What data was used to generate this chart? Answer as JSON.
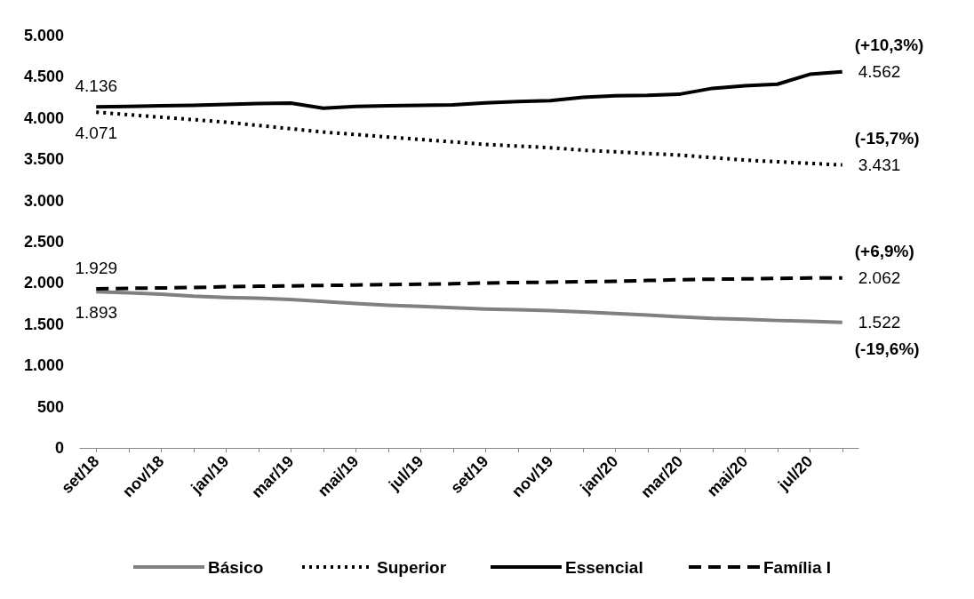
{
  "chart_data": {
    "type": "line",
    "categories": [
      "set/18",
      null,
      "nov/18",
      null,
      "jan/19",
      null,
      "mar/19",
      null,
      "mai/19",
      null,
      "jul/19",
      null,
      "set/19",
      null,
      "nov/19",
      null,
      "jan/20",
      null,
      "mar/20",
      null,
      "mai/20",
      null,
      "jul/20",
      null
    ],
    "series": [
      {
        "name": "Básico",
        "color": "#808080",
        "line_style": "solid",
        "values": [
          1893,
          1880,
          1865,
          1840,
          1825,
          1815,
          1800,
          1775,
          1750,
          1730,
          1715,
          1700,
          1685,
          1675,
          1665,
          1650,
          1630,
          1610,
          1590,
          1570,
          1560,
          1545,
          1535,
          1522
        ],
        "value_labels": [
          "1.893",
          null,
          null,
          null,
          null,
          null,
          null,
          null,
          null,
          null,
          null,
          null,
          null,
          null,
          null,
          null,
          null,
          null,
          null,
          null,
          null,
          null,
          null,
          "1.522"
        ]
      },
      {
        "name": "Superior",
        "color": "#000000",
        "line_style": "dotted",
        "values": [
          4071,
          4040,
          4010,
          3980,
          3950,
          3910,
          3870,
          3830,
          3800,
          3770,
          3740,
          3710,
          3680,
          3660,
          3640,
          3610,
          3590,
          3570,
          3550,
          3520,
          3490,
          3470,
          3450,
          3431
        ],
        "value_labels": [
          "4.071",
          null,
          null,
          null,
          null,
          null,
          null,
          null,
          null,
          null,
          null,
          null,
          null,
          null,
          null,
          null,
          null,
          null,
          null,
          null,
          null,
          null,
          null,
          "3.431"
        ]
      },
      {
        "name": "Essencial",
        "color": "#000000",
        "line_style": "solid",
        "values": [
          4136,
          4140,
          4150,
          4155,
          4165,
          4175,
          4180,
          4120,
          4140,
          4150,
          4155,
          4160,
          4185,
          4200,
          4210,
          4250,
          4270,
          4275,
          4290,
          4360,
          4390,
          4410,
          4530,
          4562
        ],
        "value_labels": [
          "4.136",
          null,
          null,
          null,
          null,
          null,
          null,
          null,
          null,
          null,
          null,
          null,
          null,
          null,
          null,
          null,
          null,
          null,
          null,
          null,
          null,
          null,
          null,
          "4.562"
        ]
      },
      {
        "name": "Família I",
        "color": "#000000",
        "line_style": "dashed",
        "values": [
          1929,
          1935,
          1940,
          1945,
          1955,
          1960,
          1965,
          1970,
          1975,
          1980,
          1985,
          1990,
          2000,
          2005,
          2010,
          2015,
          2020,
          2030,
          2040,
          2045,
          2050,
          2055,
          2060,
          2062
        ],
        "value_labels": [
          "1.929",
          null,
          null,
          null,
          null,
          null,
          null,
          null,
          null,
          null,
          null,
          null,
          null,
          null,
          null,
          null,
          null,
          null,
          null,
          null,
          null,
          null,
          null,
          "2.062"
        ]
      }
    ],
    "annotations": [
      "(-19,6%)",
      "(-15,7%)",
      "(+10,3%)",
      "(+6,9%)"
    ],
    "ylim": [
      0,
      5000
    ],
    "yticks": [
      {
        "value": 0,
        "label": "0"
      },
      {
        "value": 500,
        "label": "500"
      },
      {
        "value": 1000,
        "label": "1.000"
      },
      {
        "value": 1500,
        "label": "1.500"
      },
      {
        "value": 2000,
        "label": "2.000"
      },
      {
        "value": 2500,
        "label": "2.500"
      },
      {
        "value": 3000,
        "label": "3.000"
      },
      {
        "value": 3500,
        "label": "3.500"
      },
      {
        "value": 4000,
        "label": "4.000"
      },
      {
        "value": 4500,
        "label": "4.500"
      },
      {
        "value": 5000,
        "label": "5.000"
      }
    ],
    "grid": false,
    "legend": "bottom",
    "marker": "none"
  }
}
